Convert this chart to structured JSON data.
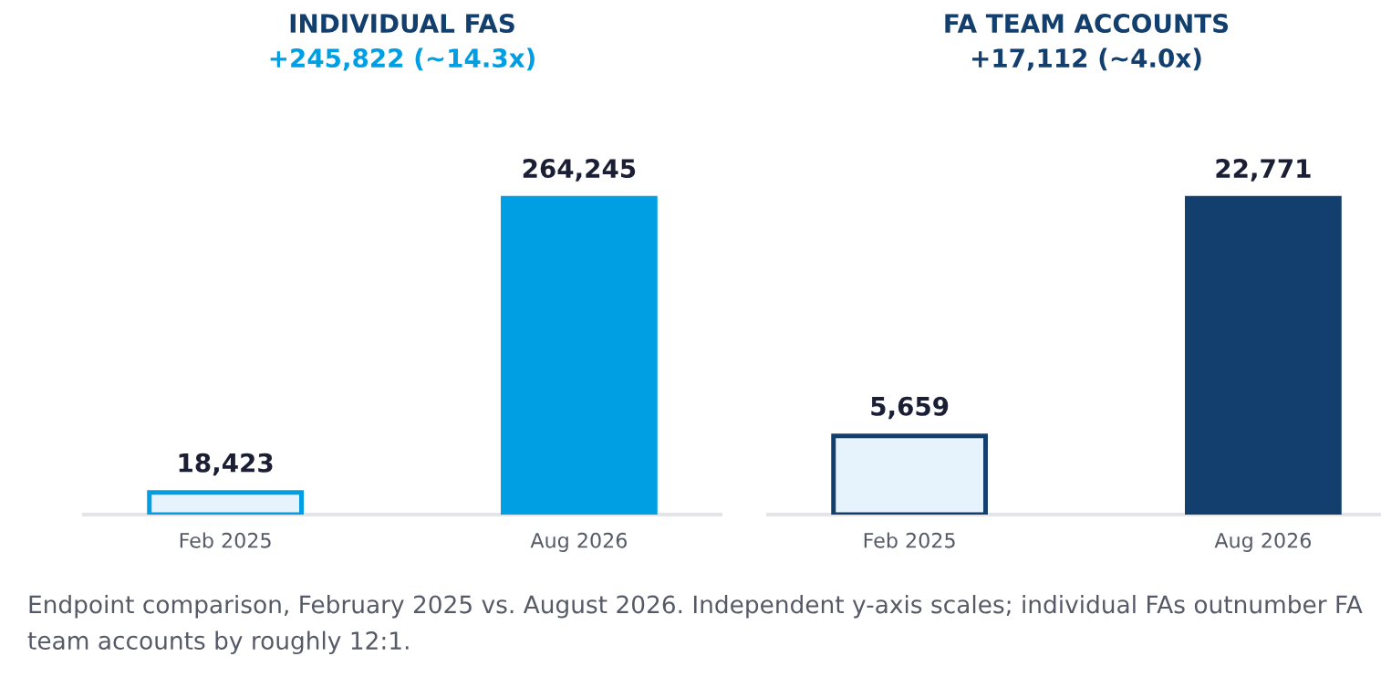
{
  "chart_data": [
    {
      "type": "bar",
      "title": "INDIVIDUAL FAS",
      "subtitle": "+245,822 (~14.3x)",
      "categories": [
        "Feb 2025",
        "Aug 2026"
      ],
      "series": [
        {
          "color": "#009fe3",
          "colors": [
            "#e6f3fc",
            "#009fe3"
          ],
          "values": [
            18423,
            264245
          ],
          "value_labels": [
            "18,423",
            "264,245"
          ]
        }
      ],
      "tick_labels": "x",
      "grid": false,
      "legend": false
    },
    {
      "type": "bar",
      "title": "FA TEAM ACCOUNTS",
      "subtitle": "+17,112 (~4.0x)",
      "categories": [
        "Feb 2025",
        "Aug 2026"
      ],
      "series": [
        {
          "color": "#123f6e",
          "colors": [
            "#e6f3fc",
            "#123f6e"
          ],
          "values": [
            5659,
            22771
          ],
          "value_labels": [
            "5,659",
            "22,771"
          ]
        }
      ],
      "tick_labels": "x",
      "grid": false,
      "legend": false,
      "annotations": [
        "Endpoint comparison, February 2025 vs. August 2026. Independent y-axis scales; individual FAs outnumber FA team accounts by roughly 12:1."
      ]
    }
  ]
}
